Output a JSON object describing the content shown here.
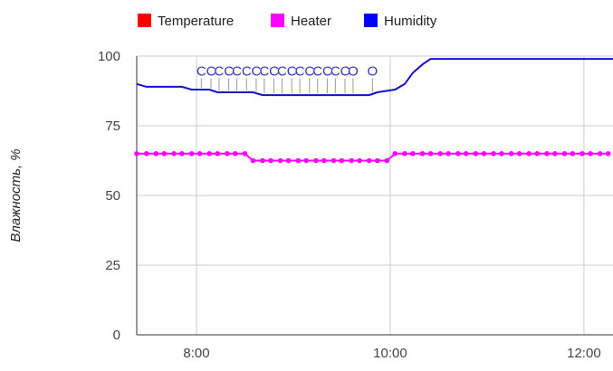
{
  "chart_data": {
    "type": "line",
    "title": "",
    "xlabel": "",
    "ylabel": "Влажность, %",
    "ylim": [
      0,
      100
    ],
    "yticks": [
      0,
      25,
      50,
      75,
      100
    ],
    "xlim": [
      "07:23",
      "12:18"
    ],
    "xticks": [
      "8:00",
      "10:00",
      "12:00"
    ],
    "grid": true,
    "legend_position": "top-left",
    "legend": [
      {
        "name": "Temperature",
        "color": "#ff0000"
      },
      {
        "name": "Heater",
        "color": "#ff00ff"
      },
      {
        "name": "Humidity",
        "color": "#0000ff"
      }
    ],
    "series": [
      {
        "name": "Heater",
        "color": "#ff00ff",
        "markers": true,
        "x": [
          "07:23",
          "07:29",
          "07:35",
          "07:40",
          "07:46",
          "07:51",
          "07:57",
          "08:02",
          "08:08",
          "08:13",
          "08:19",
          "08:24",
          "08:30",
          "08:35",
          "08:41",
          "08:46",
          "08:52",
          "08:57",
          "09:03",
          "09:08",
          "09:14",
          "09:19",
          "09:25",
          "09:30",
          "09:36",
          "09:41",
          "09:47",
          "09:52",
          "09:58",
          "10:03",
          "10:09",
          "10:14",
          "10:20",
          "10:25",
          "10:31",
          "10:36",
          "10:42",
          "10:47",
          "10:53",
          "10:58",
          "11:04",
          "11:09",
          "11:15",
          "11:20",
          "11:26",
          "11:31",
          "11:37",
          "11:42",
          "11:48",
          "11:53",
          "11:59",
          "12:04",
          "12:10",
          "12:15"
        ],
        "y": [
          65,
          65,
          65,
          65,
          65,
          65,
          65,
          65,
          65,
          65,
          65,
          65,
          65,
          62.5,
          62.5,
          62.5,
          62.5,
          62.5,
          62.5,
          62.5,
          62.5,
          62.5,
          62.5,
          62.5,
          62.5,
          62.5,
          62.5,
          62.5,
          62.5,
          65,
          65,
          65,
          65,
          65,
          65,
          65,
          65,
          65,
          65,
          65,
          65,
          65,
          65,
          65,
          65,
          65,
          65,
          65,
          65,
          65,
          65,
          65,
          65,
          65
        ]
      },
      {
        "name": "Humidity",
        "color": "#1111cc",
        "markers": false,
        "x": [
          "07:23",
          "07:29",
          "07:35",
          "07:51",
          "07:57",
          "08:08",
          "08:13",
          "08:35",
          "08:41",
          "09:47",
          "09:52",
          "10:03",
          "10:09",
          "10:14",
          "10:20",
          "10:25",
          "10:31",
          "10:36",
          "12:18"
        ],
        "y": [
          90,
          89,
          89,
          89,
          88,
          88,
          87,
          87,
          86,
          86,
          87,
          88,
          90,
          94,
          97,
          99,
          99,
          99,
          99
        ]
      }
    ],
    "annotations": {
      "series": "Humidity",
      "labels": [
        "C",
        "C",
        "C",
        "C",
        "C",
        "C",
        "C",
        "C",
        "C",
        "C",
        "C",
        "C",
        "C",
        "C",
        "C",
        "C",
        "C",
        "O",
        "O"
      ],
      "x": [
        "08:03",
        "08:09",
        "08:14",
        "08:20",
        "08:25",
        "08:31",
        "08:37",
        "08:42",
        "08:48",
        "08:53",
        "08:59",
        "09:04",
        "09:10",
        "09:15",
        "09:21",
        "09:26",
        "09:32",
        "09:37",
        "09:49"
      ],
      "y": 93
    }
  }
}
